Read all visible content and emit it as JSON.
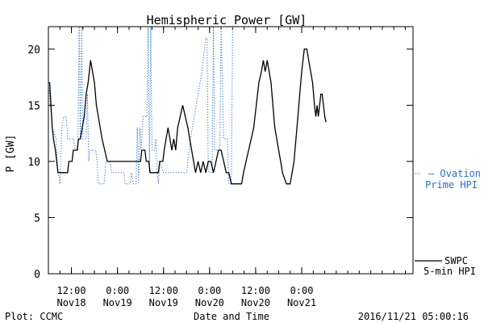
{
  "chart_data": {
    "type": "line",
    "title": "Hemispheric Power [GW]",
    "xlabel": "Date and Time",
    "ylabel": "P [GW]",
    "ylim": [
      0,
      22
    ],
    "xlim": [
      "2016-11-17 06:00",
      "2016-11-21 05:00"
    ],
    "y_ticks": [
      0,
      5,
      10,
      15,
      20
    ],
    "x_ticks": [
      {
        "time": "2016-11-17 12:00",
        "label1": "12:00",
        "label2": "Nov18"
      },
      {
        "time": "2016-11-18 00:00",
        "label1": "0:00",
        "label2": "Nov19"
      },
      {
        "time": "2016-11-18 12:00",
        "label1": "12:00",
        "label2": "Nov19"
      },
      {
        "time": "2016-11-19 00:00",
        "label1": "0:00",
        "label2": "Nov20"
      },
      {
        "time": "2016-11-19 12:00",
        "label1": "12:00",
        "label2": "Nov20"
      },
      {
        "time": "2016-11-20 00:00",
        "label1": "0:00",
        "label2": "Nov21"
      }
    ],
    "grid": false,
    "legend_placement": "right",
    "series": [
      {
        "name": "SWPC 5-min HPI",
        "legend_lines": [
          "SWPC",
          "5-min HPI"
        ],
        "color": "#000000",
        "style": "solid",
        "points": [
          [
            "2016-11-17 06:00",
            17
          ],
          [
            "2016-11-17 06:20",
            17
          ],
          [
            "2016-11-17 06:40",
            15
          ],
          [
            "2016-11-17 07:00",
            13
          ],
          [
            "2016-11-17 07:20",
            12
          ],
          [
            "2016-11-17 07:50",
            11
          ],
          [
            "2016-11-17 08:10",
            10
          ],
          [
            "2016-11-17 08:30",
            9
          ],
          [
            "2016-11-17 11:00",
            9
          ],
          [
            "2016-11-17 11:20",
            10
          ],
          [
            "2016-11-17 12:10",
            10
          ],
          [
            "2016-11-17 12:30",
            11
          ],
          [
            "2016-11-17 13:30",
            11
          ],
          [
            "2016-11-17 13:50",
            12
          ],
          [
            "2016-11-17 14:20",
            12
          ],
          [
            "2016-11-17 14:50",
            13
          ],
          [
            "2016-11-17 15:20",
            14
          ],
          [
            "2016-11-17 15:50",
            16
          ],
          [
            "2016-11-17 16:20",
            17
          ],
          [
            "2016-11-17 16:40",
            18
          ],
          [
            "2016-11-17 17:00",
            19
          ],
          [
            "2016-11-17 17:30",
            18
          ],
          [
            "2016-11-17 18:00",
            17
          ],
          [
            "2016-11-17 18:30",
            15
          ],
          [
            "2016-11-17 19:00",
            14
          ],
          [
            "2016-11-17 19:30",
            13
          ],
          [
            "2016-11-17 20:00",
            12
          ],
          [
            "2016-11-17 20:40",
            11
          ],
          [
            "2016-11-17 21:20",
            10
          ],
          [
            "2016-11-18 06:00",
            10
          ],
          [
            "2016-11-18 06:20",
            11
          ],
          [
            "2016-11-18 07:10",
            11
          ],
          [
            "2016-11-18 07:30",
            10
          ],
          [
            "2016-11-18 08:10",
            10
          ],
          [
            "2016-11-18 08:30",
            9
          ],
          [
            "2016-11-18 10:40",
            9
          ],
          [
            "2016-11-18 11:00",
            10
          ],
          [
            "2016-11-18 11:50",
            10
          ],
          [
            "2016-11-18 12:10",
            11
          ],
          [
            "2016-11-18 12:40",
            12
          ],
          [
            "2016-11-18 13:10",
            13
          ],
          [
            "2016-11-18 13:40",
            12
          ],
          [
            "2016-11-18 14:10",
            11
          ],
          [
            "2016-11-18 14:40",
            12
          ],
          [
            "2016-11-18 15:10",
            11
          ],
          [
            "2016-11-18 15:40",
            13
          ],
          [
            "2016-11-18 16:20",
            14
          ],
          [
            "2016-11-18 17:00",
            15
          ],
          [
            "2016-11-18 17:40",
            14
          ],
          [
            "2016-11-18 18:20",
            13
          ],
          [
            "2016-11-18 18:50",
            12
          ],
          [
            "2016-11-18 19:20",
            11
          ],
          [
            "2016-11-18 19:50",
            10
          ],
          [
            "2016-11-18 20:20",
            9
          ],
          [
            "2016-11-18 21:00",
            10
          ],
          [
            "2016-11-18 21:40",
            9
          ],
          [
            "2016-11-18 22:20",
            10
          ],
          [
            "2016-11-18 23:00",
            9
          ],
          [
            "2016-11-18 23:40",
            10
          ],
          [
            "2016-11-19 00:20",
            10
          ],
          [
            "2016-11-19 01:00",
            9
          ],
          [
            "2016-11-19 01:40",
            10
          ],
          [
            "2016-11-19 02:20",
            11
          ],
          [
            "2016-11-19 03:00",
            11
          ],
          [
            "2016-11-19 03:40",
            10
          ],
          [
            "2016-11-19 04:20",
            9
          ],
          [
            "2016-11-19 05:00",
            9
          ],
          [
            "2016-11-19 05:40",
            8
          ],
          [
            "2016-11-19 08:20",
            8
          ],
          [
            "2016-11-19 08:50",
            9
          ],
          [
            "2016-11-19 09:30",
            10
          ],
          [
            "2016-11-19 10:10",
            11
          ],
          [
            "2016-11-19 10:50",
            12
          ],
          [
            "2016-11-19 11:30",
            13
          ],
          [
            "2016-11-19 12:10",
            15
          ],
          [
            "2016-11-19 12:50",
            17
          ],
          [
            "2016-11-19 13:30",
            18
          ],
          [
            "2016-11-19 14:00",
            19
          ],
          [
            "2016-11-19 14:30",
            18
          ],
          [
            "2016-11-19 15:00",
            19
          ],
          [
            "2016-11-19 15:30",
            18
          ],
          [
            "2016-11-19 16:00",
            17
          ],
          [
            "2016-11-19 16:30",
            15
          ],
          [
            "2016-11-19 17:00",
            13
          ],
          [
            "2016-11-19 17:30",
            12
          ],
          [
            "2016-11-19 18:00",
            11
          ],
          [
            "2016-11-19 18:30",
            10
          ],
          [
            "2016-11-19 19:00",
            9
          ],
          [
            "2016-11-19 20:00",
            8
          ],
          [
            "2016-11-19 21:00",
            8
          ],
          [
            "2016-11-19 21:30",
            9
          ],
          [
            "2016-11-19 22:00",
            10
          ],
          [
            "2016-11-19 22:30",
            12
          ],
          [
            "2016-11-19 23:00",
            14
          ],
          [
            "2016-11-19 23:30",
            16
          ],
          [
            "2016-11-20 00:00",
            18
          ],
          [
            "2016-11-20 00:20",
            19
          ],
          [
            "2016-11-20 00:40",
            20
          ],
          [
            "2016-11-20 01:20",
            20
          ],
          [
            "2016-11-20 01:50",
            19
          ],
          [
            "2016-11-20 02:20",
            18
          ],
          [
            "2016-11-20 02:50",
            17
          ],
          [
            "2016-11-20 03:20",
            15
          ],
          [
            "2016-11-20 03:40",
            14
          ],
          [
            "2016-11-20 04:00",
            15
          ],
          [
            "2016-11-20 04:20",
            14
          ],
          [
            "2016-11-20 04:40",
            15
          ],
          [
            "2016-11-20 05:00",
            16
          ],
          [
            "2016-11-20 05:20",
            16
          ],
          [
            "2016-11-20 05:40",
            15
          ],
          [
            "2016-11-20 06:00",
            14
          ],
          [
            "2016-11-20 06:20",
            13.5
          ]
        ]
      },
      {
        "name": "Ovation Prime HPI",
        "legend_lines": [
          "– Ovation",
          "Prime HPI"
        ],
        "color": "#2a6fc9",
        "style": "dotted",
        "points": [
          [
            "2016-11-17 06:00",
            17
          ],
          [
            "2016-11-17 06:30",
            15
          ],
          [
            "2016-11-17 07:00",
            13
          ],
          [
            "2016-11-17 08:00",
            12
          ],
          [
            "2016-11-17 08:30",
            9
          ],
          [
            "2016-11-17 09:00",
            8
          ],
          [
            "2016-11-17 09:30",
            13
          ],
          [
            "2016-11-17 10:00",
            14
          ],
          [
            "2016-11-17 10:40",
            14
          ],
          [
            "2016-11-17 11:00",
            12
          ],
          [
            "2016-11-17 12:30",
            12
          ],
          [
            "2016-11-17 13:00",
            11
          ],
          [
            "2016-11-17 13:40",
            11
          ],
          [
            "2016-11-17 14:00",
            22
          ],
          [
            "2016-11-17 14:20",
            12
          ],
          [
            "2016-11-17 14:40",
            22
          ],
          [
            "2016-11-17 15:00",
            12
          ],
          [
            "2016-11-17 15:50",
            12
          ],
          [
            "2016-11-17 16:10",
            16
          ],
          [
            "2016-11-17 16:30",
            10
          ],
          [
            "2016-11-17 16:50",
            11
          ],
          [
            "2016-11-17 18:20",
            11
          ],
          [
            "2016-11-17 18:40",
            10
          ],
          [
            "2016-11-17 19:00",
            8
          ],
          [
            "2016-11-17 20:30",
            8
          ],
          [
            "2016-11-17 21:00",
            10
          ],
          [
            "2016-11-17 22:00",
            10
          ],
          [
            "2016-11-17 22:30",
            9
          ],
          [
            "2016-11-18 01:40",
            9
          ],
          [
            "2016-11-18 02:00",
            8
          ],
          [
            "2016-11-18 03:20",
            8
          ],
          [
            "2016-11-18 03:40",
            9
          ],
          [
            "2016-11-18 04:10",
            8
          ],
          [
            "2016-11-18 04:50",
            8
          ],
          [
            "2016-11-18 05:10",
            13
          ],
          [
            "2016-11-18 05:30",
            8
          ],
          [
            "2016-11-18 05:50",
            13
          ],
          [
            "2016-11-18 06:10",
            11
          ],
          [
            "2016-11-18 06:40",
            14
          ],
          [
            "2016-11-18 07:40",
            14
          ],
          [
            "2016-11-18 08:00",
            22
          ],
          [
            "2016-11-18 08:20",
            9
          ],
          [
            "2016-11-18 08:40",
            22
          ],
          [
            "2016-11-18 09:00",
            11
          ],
          [
            "2016-11-18 09:40",
            11
          ],
          [
            "2016-11-18 10:00",
            12
          ],
          [
            "2016-11-18 10:20",
            9
          ],
          [
            "2016-11-18 10:40",
            8
          ],
          [
            "2016-11-18 11:00",
            10
          ],
          [
            "2016-11-18 12:00",
            9
          ],
          [
            "2016-11-18 14:00",
            9
          ],
          [
            "2016-11-18 15:00",
            9
          ],
          [
            "2016-11-18 16:00",
            9
          ],
          [
            "2016-11-18 17:00",
            9
          ],
          [
            "2016-11-18 18:00",
            9
          ],
          [
            "2016-11-18 19:00",
            12
          ],
          [
            "2016-11-18 20:00",
            14
          ],
          [
            "2016-11-18 21:00",
            16
          ],
          [
            "2016-11-18 22:00",
            18
          ],
          [
            "2016-11-18 23:00",
            21
          ],
          [
            "2016-11-18 23:20",
            21
          ],
          [
            "2016-11-18 23:40",
            9
          ],
          [
            "2016-11-19 00:40",
            9
          ],
          [
            "2016-11-19 01:00",
            22
          ],
          [
            "2016-11-19 01:20",
            11
          ],
          [
            "2016-11-19 02:40",
            11
          ],
          [
            "2016-11-19 03:00",
            22
          ],
          [
            "2016-11-19 03:20",
            17
          ],
          [
            "2016-11-19 03:40",
            12
          ],
          [
            "2016-11-19 04:40",
            12
          ],
          [
            "2016-11-19 05:00",
            8
          ],
          [
            "2016-11-19 05:40",
            8
          ],
          [
            "2016-11-19 06:00",
            22
          ]
        ]
      }
    ]
  },
  "footer": {
    "plot_credit": "Plot: CCMC",
    "timestamp": "2016/11/21 05:00:16"
  }
}
